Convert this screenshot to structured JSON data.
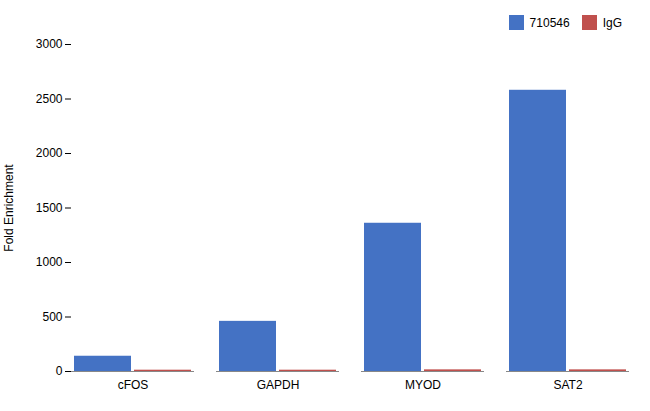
{
  "chart_data": {
    "type": "bar",
    "categories": [
      "cFOS",
      "GAPDH",
      "MYOD",
      "SAT2"
    ],
    "series": [
      {
        "name": "710546",
        "color": "#4472C4",
        "values": [
          140,
          460,
          1360,
          2580
        ]
      },
      {
        "name": "IgG",
        "color": "#C0504D",
        "values": [
          12,
          12,
          15,
          15
        ]
      }
    ],
    "ylabel": "Fold Enrichment",
    "ylim": [
      0,
      3000
    ],
    "yticks": [
      0,
      500,
      1000,
      1500,
      2000,
      2500,
      3000
    ],
    "legend": "upper right",
    "grid": false
  }
}
